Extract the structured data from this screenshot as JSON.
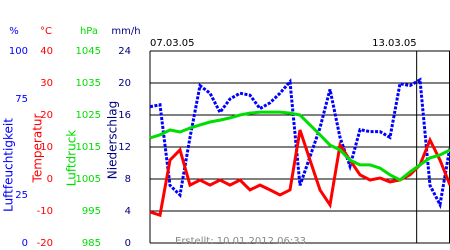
{
  "chart_data": {
    "type": "line",
    "footer": "Erstellt: 10.01.2012 06:33",
    "xlim": [
      0,
      6.75
    ],
    "xticks": [
      {
        "value": 0,
        "label": "07.03.05"
      },
      {
        "value": 6,
        "label": "13.03.05"
      }
    ],
    "x": [
      0,
      0.225,
      0.45,
      0.675,
      0.9,
      1.125,
      1.35,
      1.575,
      1.8,
      2.025,
      2.25,
      2.475,
      2.7,
      2.925,
      3.15,
      3.375,
      3.6,
      3.825,
      4.05,
      4.275,
      4.5,
      4.725,
      4.95,
      5.175,
      5.4,
      5.625,
      5.85,
      6.075,
      6.3,
      6.525,
      6.75
    ],
    "axes": [
      {
        "unit": "%",
        "label": "Luftfeuchtigkeit",
        "color": "#0000ff",
        "ylim": [
          0,
          100
        ],
        "yticks": [
          0,
          25,
          75,
          100
        ]
      },
      {
        "unit": "°C",
        "label": "Temperatur",
        "color": "#ff0000",
        "ylim": [
          -20,
          40
        ],
        "yticks": [
          -20,
          -10,
          0,
          10,
          20,
          30,
          40
        ]
      },
      {
        "unit": "hPa",
        "label": "Luftdruck",
        "color": "#00dd00",
        "ylim": [
          985,
          1045
        ],
        "yticks": [
          985,
          995,
          1005,
          1015,
          1025,
          1035,
          1045
        ]
      },
      {
        "unit": "mm/h",
        "label": "Niederschlag",
        "color": "#000080",
        "ylim": [
          0,
          24
        ],
        "yticks": [
          0,
          4,
          8,
          12,
          16,
          20,
          24
        ]
      }
    ],
    "grid": true,
    "series": [
      {
        "axis": 0,
        "color": "#0000ff",
        "dotted": true,
        "values": [
          71,
          72,
          30,
          25,
          55,
          82,
          78,
          68,
          75,
          78,
          77,
          70,
          73,
          78,
          84,
          30,
          45,
          60,
          80,
          55,
          40,
          59,
          58,
          58,
          55,
          83,
          82,
          85,
          30,
          20,
          50
        ]
      },
      {
        "axis": 1,
        "color": "#ff0000",
        "dotted": false,
        "values": [
          -10.3,
          -11.3,
          5.9,
          9.1,
          -1.9,
          -0.3,
          -1.9,
          -0.3,
          -1.9,
          -0.3,
          -3.4,
          -1.9,
          -3.4,
          -5,
          -3.4,
          15.3,
          5.9,
          -3.4,
          -8.1,
          10.6,
          5.9,
          1.3,
          -0.3,
          0.3,
          -0.9,
          -0.3,
          1.3,
          4.4,
          12.2,
          5.9,
          -1.9
        ]
      },
      {
        "axis": 2,
        "color": "#00dd00",
        "dotted": false,
        "values": [
          1017.8,
          1018.8,
          1020.3,
          1019.7,
          1020.9,
          1021.9,
          1022.8,
          1023.4,
          1024.1,
          1025,
          1025.6,
          1025.9,
          1025.9,
          1025.9,
          1025.6,
          1025,
          1021.9,
          1018.8,
          1015.6,
          1014.1,
          1010.9,
          1009.4,
          1009.4,
          1008.4,
          1006.3,
          1004.7,
          1007.2,
          1009.4,
          1011.6,
          1012.5,
          1014.1
        ]
      }
    ]
  }
}
